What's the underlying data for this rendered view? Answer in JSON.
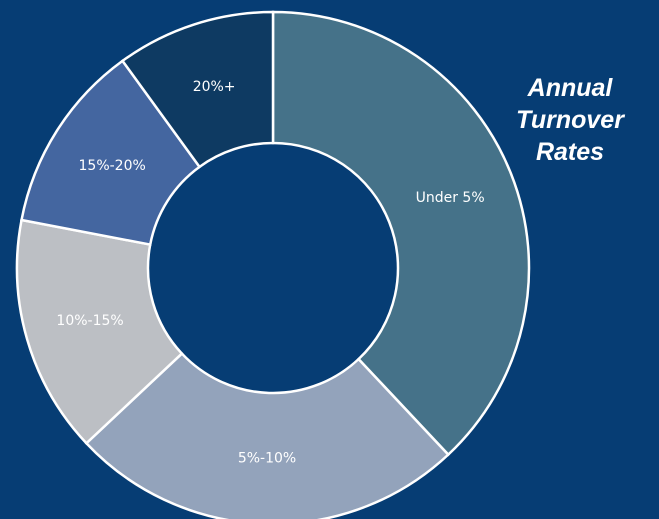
{
  "chart_data": {
    "type": "donut",
    "title": "Annual Turnover Rates",
    "categories": [
      "Under 5%",
      "5%-10%",
      "10%-15%",
      "15%-20%",
      "20%+"
    ],
    "values": [
      38,
      25,
      15,
      12,
      10
    ],
    "colors": [
      "#457289",
      "#93a3bb",
      "#bcbfc4",
      "#4466a0",
      "#0e3a62"
    ]
  }
}
